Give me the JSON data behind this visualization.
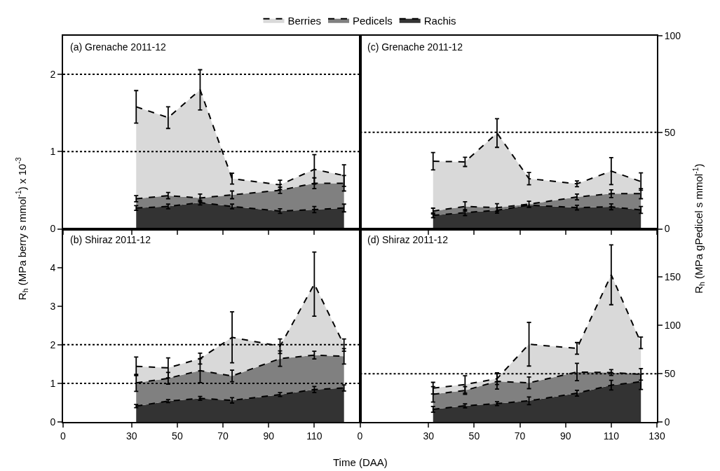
{
  "chart_data": [
    {
      "type": "area",
      "stacked": true,
      "title": "(a) Grenache 2011-12",
      "ylabel": "R$_{h}$ (MPa berry s mmol$^{-1}$) x 10$^{-3}$",
      "x": [
        32,
        46,
        60,
        74,
        95,
        110,
        123
      ],
      "xlim": [
        0,
        130
      ],
      "xticks": [
        0,
        30,
        50,
        70,
        90,
        110
      ],
      "ylim": [
        0,
        2.5
      ],
      "yticks": [
        0,
        1,
        2
      ],
      "tick_labels": "y",
      "legend": "top",
      "line_style": "dashed",
      "grid": false,
      "series": [
        {
          "name": "Rachis",
          "color": "#333333",
          "values": [
            0.27,
            0.29,
            0.34,
            0.29,
            0.23,
            0.25,
            0.27
          ],
          "errors": [
            0.03,
            0.03,
            0.03,
            0.03,
            0.03,
            0.04,
            0.05
          ]
        },
        {
          "name": "Pedicels",
          "color": "#808080",
          "values": [
            0.12,
            0.14,
            0.06,
            0.15,
            0.27,
            0.34,
            0.32
          ],
          "errors": [
            0.04,
            0.04,
            0.05,
            0.05,
            0.04,
            0.07,
            0.1
          ]
        },
        {
          "name": "Berries",
          "color": "#d9d9d9",
          "values": [
            1.19,
            1.01,
            1.4,
            0.21,
            0.07,
            0.18,
            0.1
          ],
          "errors": [
            0.21,
            0.14,
            0.26,
            0.07,
            0.06,
            0.19,
            0.14
          ]
        }
      ],
      "ref_lines": [
        {
          "axis": "y",
          "value": 1,
          "line_style": "dotted"
        },
        {
          "axis": "y",
          "value": 2,
          "line_style": "dotted"
        }
      ]
    },
    {
      "type": "area",
      "stacked": true,
      "title": "(b) Shiraz 2011-12",
      "xlabel": "Time (DAA)",
      "x": [
        32,
        46,
        60,
        74,
        95,
        110,
        123
      ],
      "xlim": [
        0,
        130
      ],
      "xticks": [
        0,
        30,
        50,
        70,
        90,
        110
      ],
      "ylim": [
        0,
        5
      ],
      "yticks": [
        0,
        1,
        2,
        3,
        4
      ],
      "line_style": "dashed",
      "grid": false,
      "series": [
        {
          "color": "#333333",
          "values": [
            0.41,
            0.54,
            0.61,
            0.56,
            0.71,
            0.84,
            0.88
          ],
          "errors": [
            0.04,
            0.04,
            0.05,
            0.07,
            0.05,
            0.08,
            0.08
          ]
        },
        {
          "color": "#808080",
          "values": [
            0.6,
            0.59,
            0.72,
            0.63,
            0.93,
            0.89,
            0.82
          ],
          "errors": [
            0.22,
            0.15,
            0.31,
            0.15,
            0.2,
            0.1,
            0.2
          ]
        },
        {
          "color": "#d9d9d9",
          "values": [
            0.43,
            0.27,
            0.31,
            1.0,
            0.32,
            1.84,
            0.29
          ],
          "errors": [
            0.24,
            0.26,
            0.14,
            0.66,
            0.19,
            0.83,
            0.16
          ]
        }
      ],
      "ref_lines": [
        {
          "axis": "y",
          "value": 1,
          "line_style": "dotted"
        },
        {
          "axis": "y",
          "value": 2,
          "line_style": "dotted"
        }
      ]
    },
    {
      "type": "area",
      "stacked": true,
      "title": "(c) Grenache 2011-12",
      "ylabel": "R$_{h}$ (MPa gPedicel s mmol$^{-1}$)",
      "x": [
        32,
        46,
        60,
        74,
        95,
        110,
        123
      ],
      "xlim": [
        0,
        130
      ],
      "xticks": [
        0,
        30,
        50,
        70,
        90,
        110,
        130
      ],
      "ylim": [
        0,
        100
      ],
      "yticks": [
        0,
        50,
        100
      ],
      "tick_labels": "y",
      "line_style": "dashed",
      "grid": false,
      "series": [
        {
          "color": "#333333",
          "values": [
            7.0,
            8.4,
            9.6,
            12.3,
            11.0,
            11.4,
            9.8
          ],
          "errors": [
            1.2,
            1.5,
            1.5,
            1.2,
            1.2,
            1.5,
            1.8
          ]
        },
        {
          "color": "#808080",
          "values": [
            2.2,
            3.2,
            1.4,
            0.5,
            5.5,
            6.8,
            8.4
          ],
          "errors": [
            1.5,
            2.4,
            2.0,
            1.5,
            1.5,
            2.0,
            2.6
          ]
        },
        {
          "color": "#d9d9d9",
          "values": [
            25.8,
            23.1,
            38.6,
            13.2,
            6.8,
            11.7,
            6.3
          ],
          "errors": [
            4.5,
            2.4,
            7.4,
            3.2,
            1.5,
            7.0,
            4.5
          ]
        }
      ],
      "ref_lines": [
        {
          "axis": "y",
          "value": 50,
          "line_style": "dotted"
        }
      ]
    },
    {
      "type": "area",
      "stacked": true,
      "title": "(d) Shiraz 2011-12",
      "x": [
        32,
        46,
        60,
        74,
        95,
        110,
        123
      ],
      "xlim": [
        0,
        130
      ],
      "xticks": [
        0,
        30,
        50,
        70,
        90,
        110,
        130
      ],
      "ylim": [
        0,
        200
      ],
      "yticks": [
        0,
        50,
        100,
        150
      ],
      "line_style": "dashed",
      "grid": false,
      "series": [
        {
          "color": "#333333",
          "values": [
            13.1,
            16.7,
            19.0,
            21.9,
            29.8,
            38.1,
            41.7
          ],
          "errors": [
            3,
            2,
            2,
            4,
            3,
            5,
            8
          ]
        },
        {
          "color": "#808080",
          "values": [
            15.5,
            15.9,
            23.1,
            18.6,
            21.9,
            13.1,
            7.6
          ],
          "errors": [
            8,
            4,
            8,
            6,
            9,
            3,
            6
          ]
        },
        {
          "color": "#d9d9d9",
          "values": [
            6.4,
            6.2,
            2.7,
            40.0,
            24.5,
            101.2,
            32.7
          ],
          "errors": [
            6,
            9,
            6,
            22.6,
            6,
            31,
            6
          ]
        }
      ],
      "ref_lines": [
        {
          "axis": "y",
          "value": 50,
          "line_style": "dotted"
        }
      ]
    }
  ]
}
